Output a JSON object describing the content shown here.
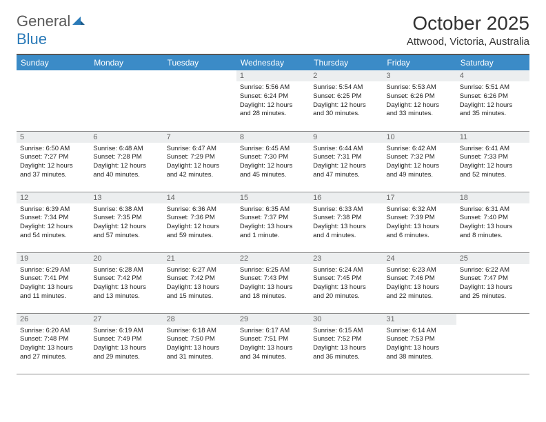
{
  "logo": {
    "general": "General",
    "blue": "Blue"
  },
  "title": "October 2025",
  "location": "Attwood, Victoria, Australia",
  "colors": {
    "header_bg": "#3b8bc7",
    "daynum_bg": "#eceeef",
    "text": "#222222",
    "border": "#888888"
  },
  "day_headers": [
    "Sunday",
    "Monday",
    "Tuesday",
    "Wednesday",
    "Thursday",
    "Friday",
    "Saturday"
  ],
  "weeks": [
    [
      null,
      null,
      null,
      {
        "n": "1",
        "sunrise": "5:56 AM",
        "sunset": "6:24 PM",
        "day_h": "12",
        "day_m": "28"
      },
      {
        "n": "2",
        "sunrise": "5:54 AM",
        "sunset": "6:25 PM",
        "day_h": "12",
        "day_m": "30"
      },
      {
        "n": "3",
        "sunrise": "5:53 AM",
        "sunset": "6:26 PM",
        "day_h": "12",
        "day_m": "33"
      },
      {
        "n": "4",
        "sunrise": "5:51 AM",
        "sunset": "6:26 PM",
        "day_h": "12",
        "day_m": "35"
      }
    ],
    [
      {
        "n": "5",
        "sunrise": "6:50 AM",
        "sunset": "7:27 PM",
        "day_h": "12",
        "day_m": "37"
      },
      {
        "n": "6",
        "sunrise": "6:48 AM",
        "sunset": "7:28 PM",
        "day_h": "12",
        "day_m": "40"
      },
      {
        "n": "7",
        "sunrise": "6:47 AM",
        "sunset": "7:29 PM",
        "day_h": "12",
        "day_m": "42"
      },
      {
        "n": "8",
        "sunrise": "6:45 AM",
        "sunset": "7:30 PM",
        "day_h": "12",
        "day_m": "45"
      },
      {
        "n": "9",
        "sunrise": "6:44 AM",
        "sunset": "7:31 PM",
        "day_h": "12",
        "day_m": "47"
      },
      {
        "n": "10",
        "sunrise": "6:42 AM",
        "sunset": "7:32 PM",
        "day_h": "12",
        "day_m": "49"
      },
      {
        "n": "11",
        "sunrise": "6:41 AM",
        "sunset": "7:33 PM",
        "day_h": "12",
        "day_m": "52"
      }
    ],
    [
      {
        "n": "12",
        "sunrise": "6:39 AM",
        "sunset": "7:34 PM",
        "day_h": "12",
        "day_m": "54"
      },
      {
        "n": "13",
        "sunrise": "6:38 AM",
        "sunset": "7:35 PM",
        "day_h": "12",
        "day_m": "57"
      },
      {
        "n": "14",
        "sunrise": "6:36 AM",
        "sunset": "7:36 PM",
        "day_h": "12",
        "day_m": "59"
      },
      {
        "n": "15",
        "sunrise": "6:35 AM",
        "sunset": "7:37 PM",
        "day_h": "13",
        "day_m": "1"
      },
      {
        "n": "16",
        "sunrise": "6:33 AM",
        "sunset": "7:38 PM",
        "day_h": "13",
        "day_m": "4"
      },
      {
        "n": "17",
        "sunrise": "6:32 AM",
        "sunset": "7:39 PM",
        "day_h": "13",
        "day_m": "6"
      },
      {
        "n": "18",
        "sunrise": "6:31 AM",
        "sunset": "7:40 PM",
        "day_h": "13",
        "day_m": "8"
      }
    ],
    [
      {
        "n": "19",
        "sunrise": "6:29 AM",
        "sunset": "7:41 PM",
        "day_h": "13",
        "day_m": "11"
      },
      {
        "n": "20",
        "sunrise": "6:28 AM",
        "sunset": "7:42 PM",
        "day_h": "13",
        "day_m": "13"
      },
      {
        "n": "21",
        "sunrise": "6:27 AM",
        "sunset": "7:42 PM",
        "day_h": "13",
        "day_m": "15"
      },
      {
        "n": "22",
        "sunrise": "6:25 AM",
        "sunset": "7:43 PM",
        "day_h": "13",
        "day_m": "18"
      },
      {
        "n": "23",
        "sunrise": "6:24 AM",
        "sunset": "7:45 PM",
        "day_h": "13",
        "day_m": "20"
      },
      {
        "n": "24",
        "sunrise": "6:23 AM",
        "sunset": "7:46 PM",
        "day_h": "13",
        "day_m": "22"
      },
      {
        "n": "25",
        "sunrise": "6:22 AM",
        "sunset": "7:47 PM",
        "day_h": "13",
        "day_m": "25"
      }
    ],
    [
      {
        "n": "26",
        "sunrise": "6:20 AM",
        "sunset": "7:48 PM",
        "day_h": "13",
        "day_m": "27"
      },
      {
        "n": "27",
        "sunrise": "6:19 AM",
        "sunset": "7:49 PM",
        "day_h": "13",
        "day_m": "29"
      },
      {
        "n": "28",
        "sunrise": "6:18 AM",
        "sunset": "7:50 PM",
        "day_h": "13",
        "day_m": "31"
      },
      {
        "n": "29",
        "sunrise": "6:17 AM",
        "sunset": "7:51 PM",
        "day_h": "13",
        "day_m": "34"
      },
      {
        "n": "30",
        "sunrise": "6:15 AM",
        "sunset": "7:52 PM",
        "day_h": "13",
        "day_m": "36"
      },
      {
        "n": "31",
        "sunrise": "6:14 AM",
        "sunset": "7:53 PM",
        "day_h": "13",
        "day_m": "38"
      },
      null
    ]
  ],
  "labels": {
    "sunrise": "Sunrise:",
    "sunset": "Sunset:",
    "daylight": "Daylight:",
    "hours": "hours",
    "and": "and",
    "minute": "minute.",
    "minutes": "minutes."
  }
}
